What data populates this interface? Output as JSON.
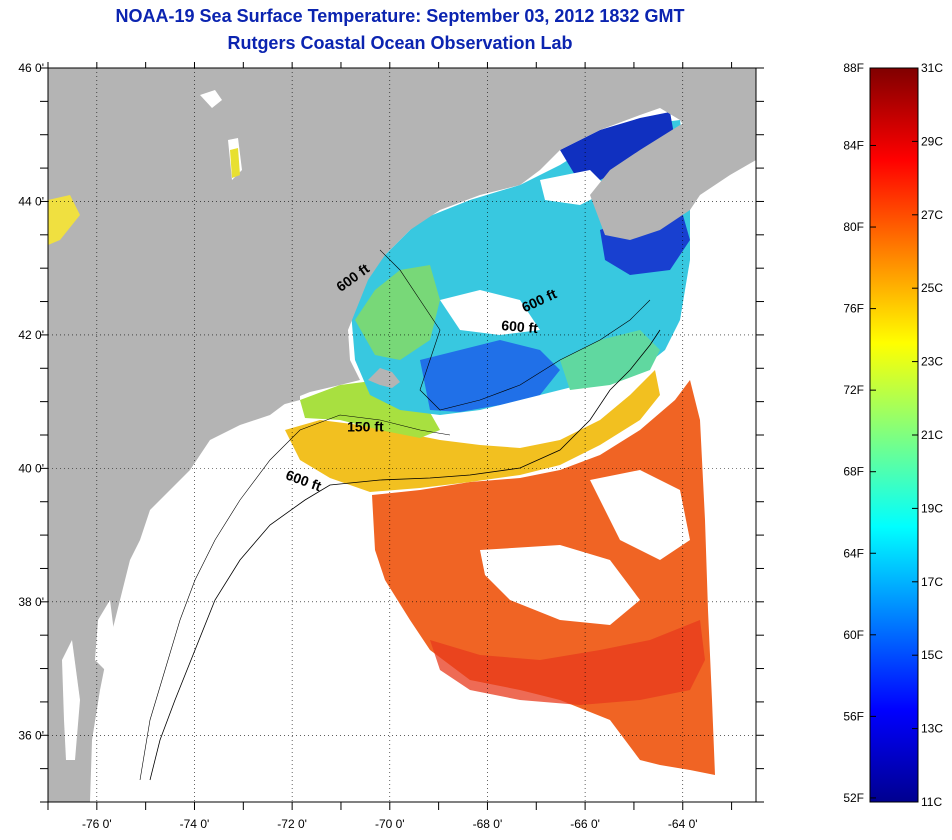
{
  "title": "NOAA-19 Sea Surface Temperature:  September 03, 2012 1832 GMT",
  "subtitle": "Rutgers Coastal Ocean Observation Lab",
  "map": {
    "lon_range": [
      -77,
      -62.5
    ],
    "lat_range": [
      35,
      46
    ],
    "lon_ticks": [
      -76,
      -74,
      -72,
      -70,
      -68,
      -66,
      -64
    ],
    "lon_tick_labels": [
      "-76 0'",
      "-74 0'",
      "-72 0'",
      "-70 0'",
      "-68 0'",
      "-66 0'",
      "-64 0'"
    ],
    "lat_ticks": [
      46,
      44,
      42,
      40,
      38,
      36
    ],
    "lat_tick_labels": [
      "46 0'",
      "44 0'",
      "42 0'",
      "40 0'",
      "38 0'",
      "36 0'"
    ],
    "grid": "dotted",
    "land_color": "#b4b4b4",
    "cloud_color": "#ffffff",
    "contour_labels": [
      {
        "text": "600 ft",
        "lon": -70.7,
        "lat": 42.8,
        "rot": 36
      },
      {
        "text": "600 ft",
        "lon": -66.9,
        "lat": 42.45,
        "rot": 25
      },
      {
        "text": "600 ft",
        "lon": -67.35,
        "lat": 42.05,
        "rot": -5
      },
      {
        "text": "150 ft",
        "lon": -70.5,
        "lat": 40.55,
        "rot": 0
      },
      {
        "text": "600 ft",
        "lon": -71.8,
        "lat": 39.75,
        "rot": -20
      }
    ]
  },
  "colorbar": {
    "fahrenheit_labels": [
      "88F",
      "84F",
      "80F",
      "76F",
      "72F",
      "68F",
      "64F",
      "60F",
      "56F",
      "52F"
    ],
    "fahrenheit_values": [
      88,
      84,
      80,
      76,
      72,
      68,
      64,
      60,
      56,
      52
    ],
    "celsius_labels": [
      "31C",
      "29C",
      "27C",
      "25C",
      "23C",
      "21C",
      "19C",
      "17C",
      "15C",
      "13C",
      "11C"
    ],
    "celsius_values": [
      31,
      29,
      27,
      25,
      23,
      21,
      19,
      17,
      15,
      13,
      11
    ],
    "range_celsius": [
      11,
      31
    ],
    "colormap": "jet"
  }
}
